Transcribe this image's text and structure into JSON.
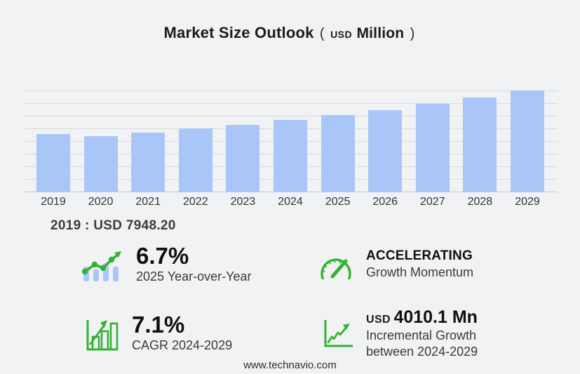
{
  "title": {
    "main": "Market Size Outlook",
    "paren_open": "(",
    "unit_small": "USD",
    "unit_large": "Million",
    "paren_close": ")"
  },
  "chart_data": {
    "type": "bar",
    "title": "Market Size Outlook (USD Million)",
    "categories": [
      "2019",
      "2020",
      "2021",
      "2022",
      "2023",
      "2024",
      "2025",
      "2026",
      "2027",
      "2028",
      "2029"
    ],
    "values": [
      7948.2,
      7590,
      8080,
      8700,
      9190,
      9804.6,
      10461.5,
      11150,
      11970,
      12850,
      13814.7
    ],
    "xlabel": "",
    "ylabel": "USD Million",
    "ylim": [
      0,
      14300
    ],
    "grid": true,
    "gridline_count": 9,
    "legend": false,
    "bar_color": "#a9c6f8"
  },
  "annotation": {
    "base_year_value": "2019 : USD 7948.20"
  },
  "stats": [
    {
      "icon": "bars-trend-arrow-icon",
      "value": "6.7%",
      "label": "2025 Year-over-Year"
    },
    {
      "icon": "gauge-icon",
      "value": "ACCELERATING",
      "label": "Growth Momentum"
    },
    {
      "icon": "bar-chart-growth-icon",
      "value": "7.1%",
      "label": "CAGR 2024-2029"
    },
    {
      "icon": "line-chart-axis-icon",
      "value_prefix": "USD",
      "value": "4010.1 Mn",
      "label": "Incremental Growth",
      "label2": "between 2024-2029"
    }
  ],
  "footer": {
    "url": "www.technavio.com"
  },
  "colors": {
    "background": "#f1f2f4",
    "bar_blue": "#a9c6f8",
    "icon_green": "#34b233",
    "gridline": "#d9dadc",
    "text_dark": "#1b1b1b",
    "text_secondary": "#3a3a3a"
  }
}
